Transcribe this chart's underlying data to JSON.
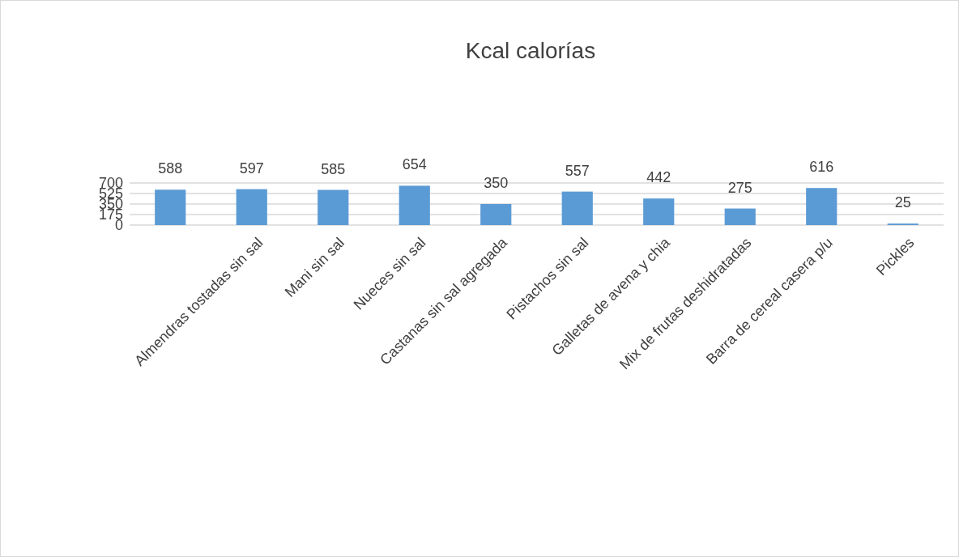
{
  "chart_data": {
    "type": "bar",
    "title": "Kcal calorías",
    "categories": [
      null,
      "Almendras tostadas sin sal",
      "Mani sin sal",
      "Nueces sin sal",
      "Castanas sin sal agregada",
      "Pistachos sin sal",
      "Galletas de avena y chia",
      "Mix de frutas deshidratadas",
      "Barra de cereal casera p/u",
      "Pickles"
    ],
    "values": [
      588,
      597,
      585,
      654,
      350,
      557,
      442,
      275,
      616,
      25
    ],
    "color": "#5b9bd5",
    "ylim": [
      0,
      700
    ],
    "yticks": [
      0,
      175,
      350,
      525,
      700
    ],
    "grid": "y",
    "data_labels": true
  }
}
